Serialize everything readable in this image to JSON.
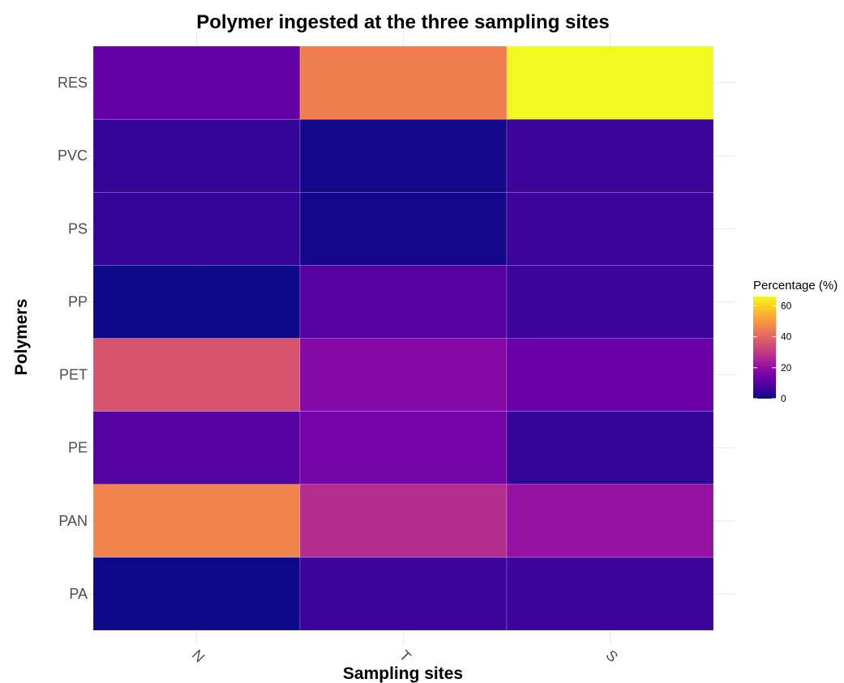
{
  "chart_data": {
    "type": "heatmap",
    "title": "Polymer ingested at the three sampling sites",
    "xlabel": "Sampling sites",
    "ylabel": "Polymers",
    "x": [
      "N",
      "T",
      "S"
    ],
    "y": [
      "PA",
      "PAN",
      "PE",
      "PET",
      "PP",
      "PS",
      "PVC",
      "RES"
    ],
    "values": [
      [
        0,
        6,
        6
      ],
      [
        46,
        27,
        21
      ],
      [
        10,
        15,
        5
      ],
      [
        36,
        18,
        13
      ],
      [
        0,
        10,
        6
      ],
      [
        5,
        1,
        6
      ],
      [
        5,
        1,
        6
      ],
      [
        12,
        45,
        66
      ]
    ],
    "legend": {
      "title": "Percentage (%)",
      "ticks": [
        0,
        20,
        40,
        60
      ],
      "range": [
        0,
        66
      ],
      "placement": "right",
      "colormap": "plasma"
    },
    "grid": true
  }
}
